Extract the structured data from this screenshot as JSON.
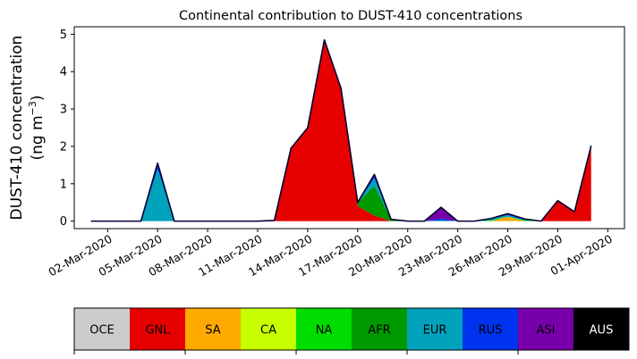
{
  "chart_data": {
    "type": "area",
    "title": "Continental contribution to DUST-410 concentrations",
    "ylabel_line1": "DUST-410 concentration",
    "ylabel_line2": "(ng m",
    "ylabel_unit_sup": "−3",
    "ylabel_close": ")",
    "xlabel": "",
    "xlim": [
      "2020-02-29",
      "2020-04-02"
    ],
    "ylim": [
      -0.2,
      5.2
    ],
    "yticks": [
      0,
      1,
      2,
      3,
      4,
      5
    ],
    "x_tick_labels": [
      "02-Mar-2020",
      "05-Mar-2020",
      "08-Mar-2020",
      "11-Mar-2020",
      "14-Mar-2020",
      "17-Mar-2020",
      "20-Mar-2020",
      "23-Mar-2020",
      "26-Mar-2020",
      "29-Mar-2020",
      "01-Apr-2020"
    ],
    "x_tick_dates": [
      "2020-03-02",
      "2020-03-05",
      "2020-03-08",
      "2020-03-11",
      "2020-03-14",
      "2020-03-17",
      "2020-03-20",
      "2020-03-23",
      "2020-03-26",
      "2020-03-29",
      "2020-04-01"
    ],
    "x": [
      "2020-03-01",
      "2020-03-02",
      "2020-03-03",
      "2020-03-04",
      "2020-03-05",
      "2020-03-06",
      "2020-03-07",
      "2020-03-08",
      "2020-03-09",
      "2020-03-10",
      "2020-03-11",
      "2020-03-12",
      "2020-03-13",
      "2020-03-14",
      "2020-03-15",
      "2020-03-16",
      "2020-03-17",
      "2020-03-18",
      "2020-03-19",
      "2020-03-20",
      "2020-03-21",
      "2020-03-22",
      "2020-03-23",
      "2020-03-24",
      "2020-03-25",
      "2020-03-26",
      "2020-03-27",
      "2020-03-28",
      "2020-03-29",
      "2020-03-30",
      "2020-03-31"
    ],
    "grid": false,
    "series": [
      {
        "name": "OCE",
        "color": "#cccccc",
        "values": [
          0,
          0,
          0,
          0,
          0,
          0,
          0,
          0,
          0,
          0,
          0,
          0,
          0,
          0,
          0,
          0,
          0,
          0,
          0,
          0,
          0,
          0,
          0,
          0,
          0,
          0,
          0,
          0,
          0,
          0,
          0
        ]
      },
      {
        "name": "GNL",
        "color": "#e60000",
        "values": [
          0,
          0,
          0,
          0,
          0,
          0,
          0,
          0,
          0,
          0,
          0,
          0,
          1.95,
          2.5,
          4.85,
          3.55,
          0.4,
          0.15,
          0,
          0,
          0,
          0,
          0,
          0,
          0,
          0,
          0,
          0,
          0.55,
          0.25,
          1.95
        ]
      },
      {
        "name": "SA",
        "color": "#ffaa00",
        "values": [
          0,
          0,
          0,
          0,
          0,
          0,
          0,
          0,
          0,
          0,
          0,
          0,
          0,
          0,
          0,
          0,
          0,
          0,
          0,
          0,
          0,
          0,
          0,
          0,
          0,
          0.12,
          0,
          0,
          0,
          0,
          0
        ]
      },
      {
        "name": "CA",
        "color": "#c8ff00",
        "values": [
          0,
          0,
          0,
          0,
          0,
          0,
          0,
          0,
          0,
          0,
          0,
          0,
          0,
          0,
          0,
          0,
          0,
          0,
          0,
          0,
          0,
          0,
          0,
          0,
          0,
          0,
          0,
          0,
          0,
          0,
          0
        ]
      },
      {
        "name": "NA",
        "color": "#00dd00",
        "values": [
          0,
          0,
          0,
          0,
          0,
          0,
          0,
          0,
          0,
          0,
          0,
          0.02,
          0,
          0,
          0,
          0,
          0,
          0,
          0,
          0,
          0,
          0,
          0,
          0,
          0.02,
          0,
          0.03,
          0,
          0,
          0,
          0
        ]
      },
      {
        "name": "AFR",
        "color": "#009900",
        "values": [
          0,
          0,
          0,
          0,
          0,
          0,
          0,
          0,
          0,
          0,
          0,
          0,
          0,
          0,
          0,
          0,
          0.1,
          0.8,
          0.05,
          0,
          0,
          0,
          0,
          0,
          0,
          0,
          0,
          0,
          0,
          0,
          0
        ]
      },
      {
        "name": "EUR",
        "color": "#00a3bb",
        "values": [
          0,
          0,
          0,
          0,
          1.4,
          0,
          0,
          0,
          0,
          0,
          0,
          0,
          0,
          0,
          0,
          0,
          0,
          0.2,
          0,
          0,
          0,
          0.02,
          0,
          0,
          0.05,
          0.04,
          0,
          0,
          0,
          0,
          0.05
        ]
      },
      {
        "name": "RUS",
        "color": "#0033ee",
        "values": [
          0,
          0,
          0,
          0,
          0.1,
          0,
          0,
          0,
          0,
          0,
          0,
          0,
          0,
          0,
          0,
          0,
          0,
          0.05,
          0,
          0,
          0,
          0.05,
          0,
          0,
          0,
          0.02,
          0.03,
          0,
          0,
          0,
          0.02
        ]
      },
      {
        "name": "ASI",
        "color": "#7700aa",
        "values": [
          0,
          0,
          0,
          0,
          0.05,
          0,
          0,
          0,
          0,
          0,
          0,
          0,
          0,
          0,
          0,
          0,
          0,
          0.05,
          0,
          0,
          0,
          0.3,
          0,
          0,
          0,
          0.02,
          0,
          0,
          0,
          0,
          0
        ]
      },
      {
        "name": "AUS",
        "color": "#000000",
        "values": [
          0,
          0,
          0,
          0,
          0,
          0,
          0,
          0,
          0,
          0,
          0,
          0,
          0,
          0,
          0,
          0,
          0,
          0,
          0,
          0,
          0,
          0,
          0,
          0,
          0,
          0,
          0,
          0,
          0,
          0,
          0
        ]
      }
    ],
    "total": [
      0,
      0,
      0,
      0,
      1.55,
      0,
      0,
      0,
      0,
      0,
      0,
      0.02,
      1.95,
      2.5,
      4.85,
      3.55,
      0.5,
      1.25,
      0.05,
      0,
      0,
      0.37,
      0,
      0,
      0.07,
      0.2,
      0.06,
      0,
      0.55,
      0.25,
      2.02
    ],
    "total_line_color": "#000033",
    "legend": {
      "placement": "bottom",
      "style": "colorbar",
      "labels": [
        "OCE",
        "GNL",
        "SA",
        "CA",
        "NA",
        "AFR",
        "EUR",
        "RUS",
        "ASI",
        "AUS"
      ],
      "colors": [
        "#cccccc",
        "#e60000",
        "#ffaa00",
        "#c8ff00",
        "#00dd00",
        "#009900",
        "#00a3bb",
        "#0033ee",
        "#7700aa",
        "#000000"
      ],
      "text_colors": [
        "#000000",
        "#000000",
        "#000000",
        "#000000",
        "#000000",
        "#000000",
        "#000000",
        "#000000",
        "#000000",
        "#ffffff"
      ]
    }
  }
}
